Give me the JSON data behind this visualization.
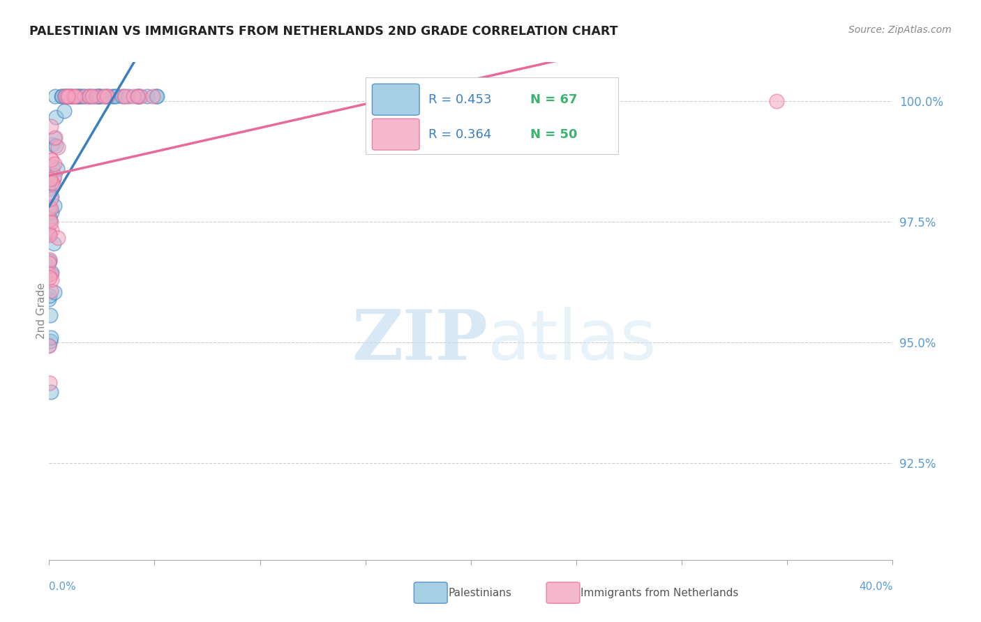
{
  "title": "PALESTINIAN VS IMMIGRANTS FROM NETHERLANDS 2ND GRADE CORRELATION CHART",
  "source": "Source: ZipAtlas.com",
  "ylabel": "2nd Grade",
  "ytick_labels": [
    "100.0%",
    "97.5%",
    "95.0%",
    "92.5%"
  ],
  "ytick_values": [
    1.0,
    0.975,
    0.95,
    0.925
  ],
  "xlim": [
    0.0,
    0.4
  ],
  "ylim": [
    0.905,
    1.008
  ],
  "blue_R": 0.453,
  "blue_N": 67,
  "pink_R": 0.364,
  "pink_N": 50,
  "blue_color": "#92c5de",
  "pink_color": "#f4a6c0",
  "blue_line_color": "#3a7fc1",
  "pink_line_color": "#e8699a",
  "legend_R_color": "#3a7fc1",
  "legend_N_color": "#3cb371",
  "watermark_zip": "ZIP",
  "watermark_atlas": "atlas",
  "bg_color": "#ffffff",
  "grid_color": "#cccccc",
  "ytick_color": "#5b9bd5",
  "xtick_color": "#5b9bd5",
  "bottom_legend_text_color": "#555555",
  "title_color": "#222222",
  "source_color": "#888888"
}
